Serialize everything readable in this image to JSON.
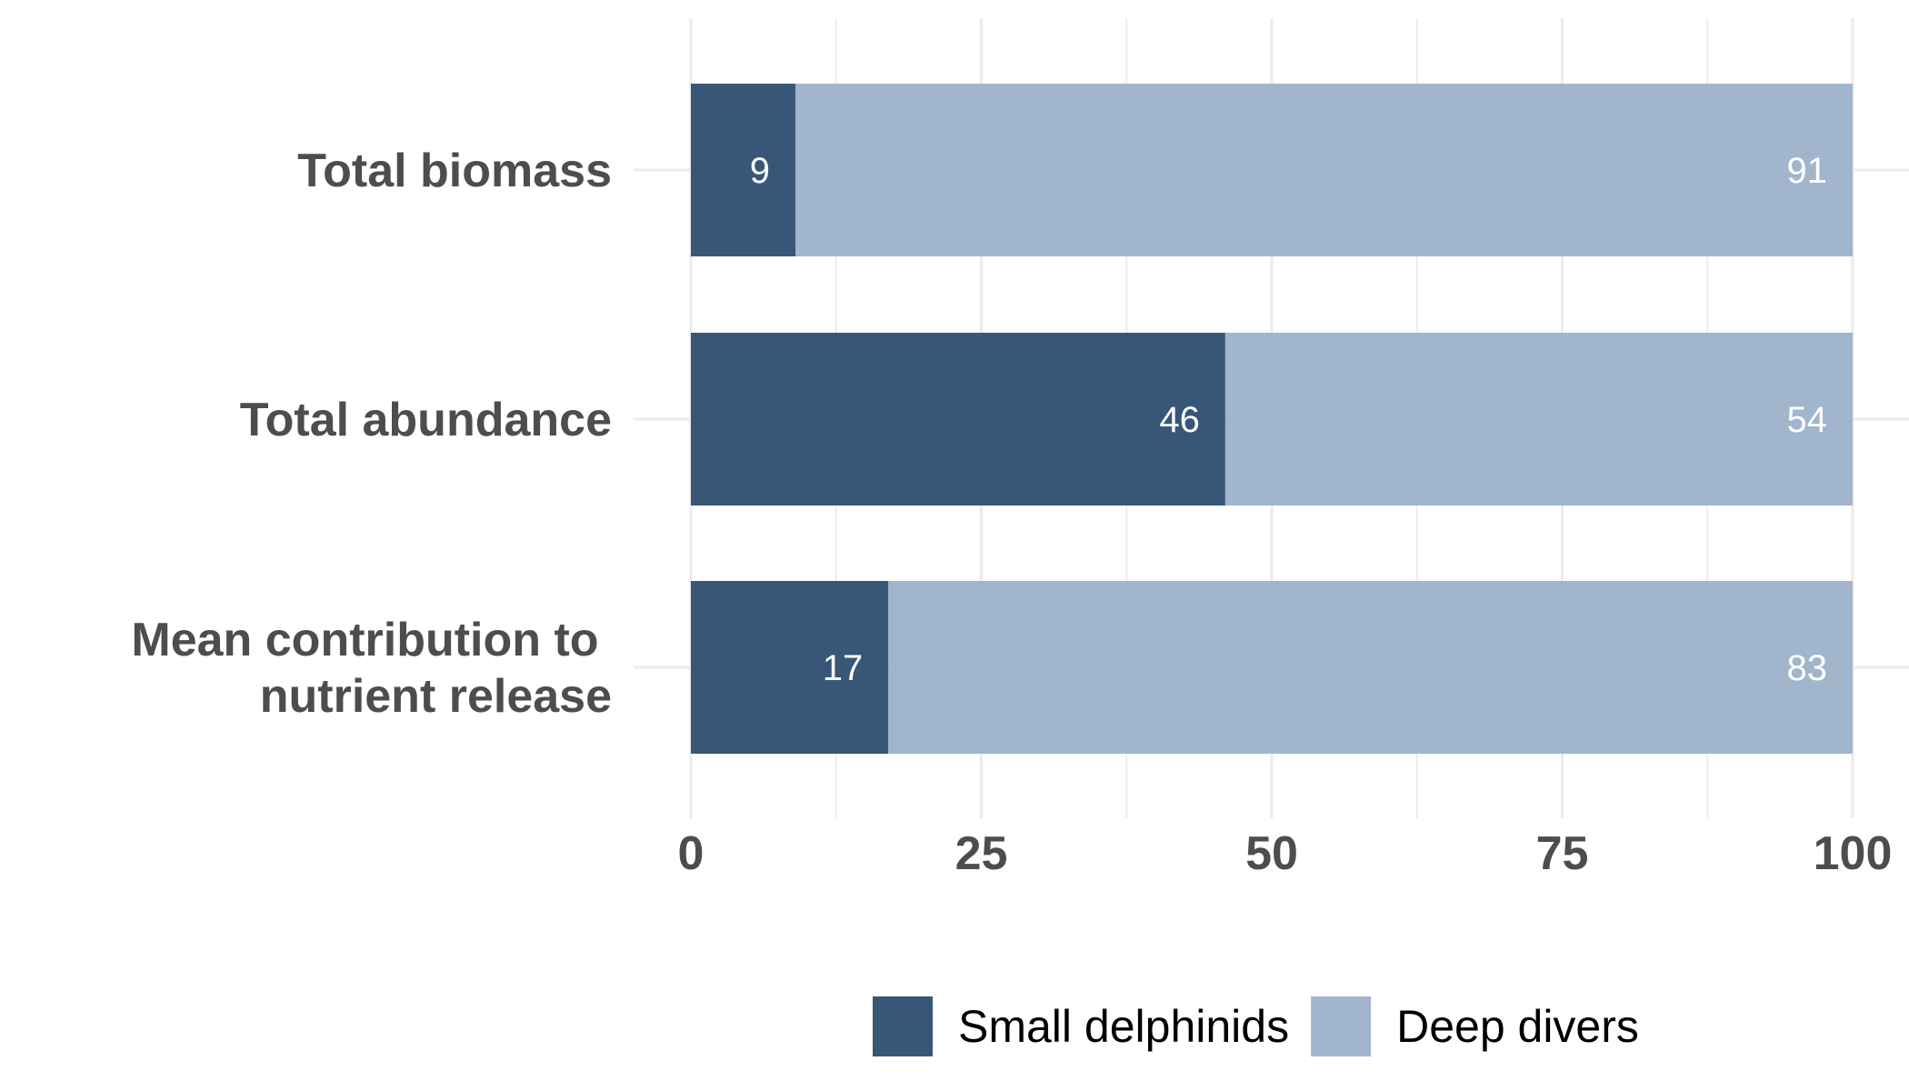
{
  "chart_data": {
    "type": "bar",
    "orientation": "horizontal",
    "stacked": true,
    "categories": [
      "Total biomass",
      "Total abundance",
      "Mean contribution to nutrient release"
    ],
    "category_label_lines": [
      [
        "Total biomass"
      ],
      [
        "Total abundance"
      ],
      [
        "Mean contribution to ",
        "nutrient release"
      ]
    ],
    "series": [
      {
        "name": "Small delphinids",
        "values": [
          9,
          46,
          17
        ],
        "color": "#385678"
      },
      {
        "name": "Deep divers",
        "values": [
          91,
          54,
          83
        ],
        "color": "#a1b5cc"
      }
    ],
    "xlim": [
      0,
      100
    ],
    "xticks": [
      0,
      25,
      50,
      75,
      100
    ],
    "title": "",
    "xlabel": "",
    "ylabel": "",
    "grid": true,
    "legend_position": "bottom"
  }
}
